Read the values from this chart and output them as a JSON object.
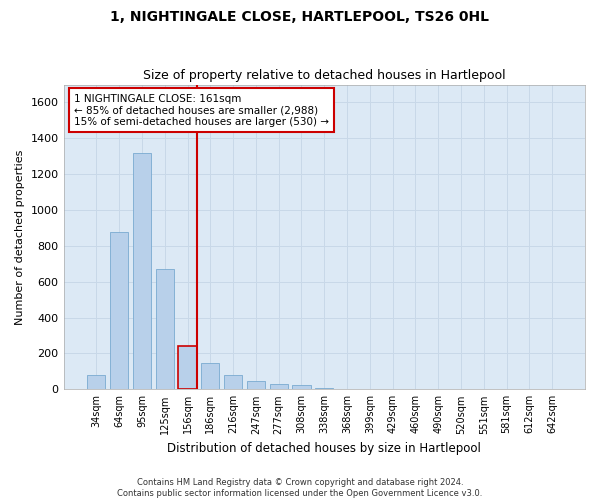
{
  "title": "1, NIGHTINGALE CLOSE, HARTLEPOOL, TS26 0HL",
  "subtitle": "Size of property relative to detached houses in Hartlepool",
  "xlabel": "Distribution of detached houses by size in Hartlepool",
  "ylabel": "Number of detached properties",
  "categories": [
    "34sqm",
    "64sqm",
    "95sqm",
    "125sqm",
    "156sqm",
    "186sqm",
    "216sqm",
    "247sqm",
    "277sqm",
    "308sqm",
    "338sqm",
    "368sqm",
    "399sqm",
    "429sqm",
    "460sqm",
    "490sqm",
    "520sqm",
    "551sqm",
    "581sqm",
    "612sqm",
    "642sqm"
  ],
  "values": [
    80,
    878,
    1320,
    670,
    240,
    145,
    80,
    45,
    30,
    25,
    5,
    3,
    1,
    0,
    0,
    1,
    0,
    0,
    0,
    0,
    0
  ],
  "bar_color": "#b8d0ea",
  "bar_edge_color": "#7aaad0",
  "highlight_index": 4,
  "highlight_color": "#cc0000",
  "ylim": [
    0,
    1700
  ],
  "yticks": [
    0,
    200,
    400,
    600,
    800,
    1000,
    1200,
    1400,
    1600
  ],
  "annotation_text": "1 NIGHTINGALE CLOSE: 161sqm\n← 85% of detached houses are smaller (2,988)\n15% of semi-detached houses are larger (530) →",
  "annotation_box_color": "#cc0000",
  "grid_color": "#c8d8e8",
  "bg_color": "#dce9f5",
  "footer_line1": "Contains HM Land Registry data © Crown copyright and database right 2024.",
  "footer_line2": "Contains public sector information licensed under the Open Government Licence v3.0."
}
